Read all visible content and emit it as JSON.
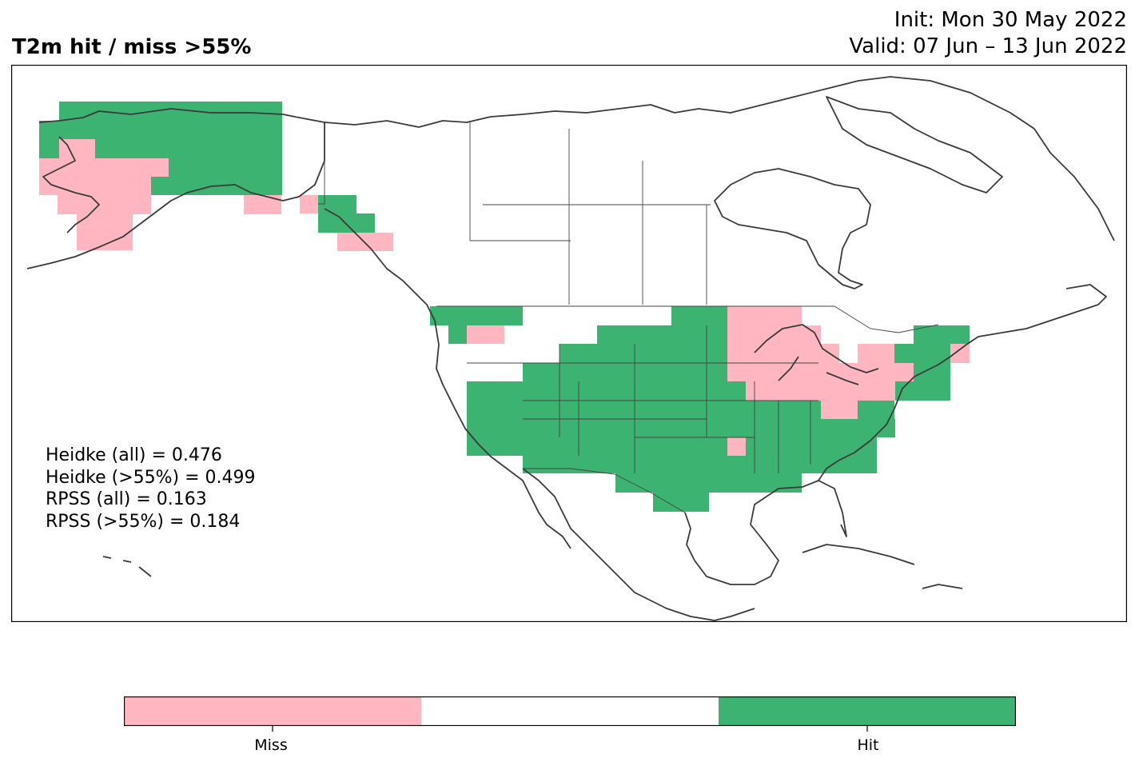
{
  "title": "T2m hit / miss  >55%",
  "init": "Init: Mon 30 May 2022",
  "valid": "Valid: 07 Jun – 13 Jun 2022",
  "stats": [
    "Heidke (all) = 0.476",
    "Heidke (>55%) = 0.499",
    "RPSS (all) = 0.163",
    "RPSS (>55%) = 0.184"
  ],
  "colors": {
    "miss": "#ffb6c1",
    "neutral": "#ffffff",
    "hit": "#3cb371",
    "coast": "#3a3a3a"
  },
  "legend": {
    "categories": [
      "Miss",
      "",
      "Hit"
    ],
    "tick_labels": [
      "Miss",
      "Hit"
    ]
  }
}
